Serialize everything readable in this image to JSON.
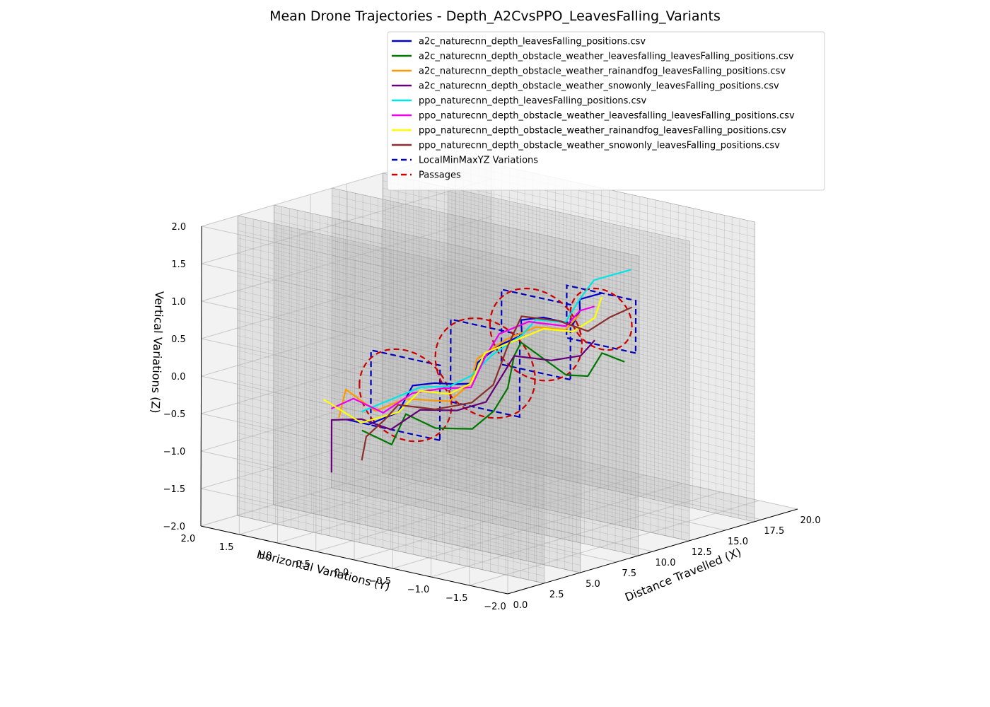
{
  "chart_data": {
    "type": "line",
    "title": "Mean Drone Trajectories - Depth_A2CvsPPO_LeavesFalling_Variants",
    "xlabel": "Distance Travelled (X)",
    "ylabel": "Horizontal Variations (Y)",
    "zlabel": "Vertical Variations (Z)",
    "xlim": [
      0,
      20
    ],
    "ylim": [
      -2,
      2
    ],
    "zlim": [
      -2,
      2
    ],
    "xticks": [
      "0.0",
      "2.5",
      "5.0",
      "7.5",
      "10.0",
      "12.5",
      "15.0",
      "17.5",
      "20.0"
    ],
    "yticks": [
      "2.0",
      "1.5",
      "1.0",
      "0.5",
      "0.0",
      "−0.5",
      "−1.0",
      "−1.5",
      "−2.0"
    ],
    "zticks": [
      "2.0",
      "1.5",
      "1.0",
      "0.5",
      "0.0",
      "−0.5",
      "−1.0",
      "−1.5",
      "−2.0"
    ],
    "grid": true,
    "legend_position": "top-right",
    "walls_x": [
      2.5,
      5.0,
      9.0,
      12.5,
      17.0
    ],
    "series": [
      {
        "name": "a2c_naturecnn_depth_leavesFalling_positions.csv",
        "color": "#0000cc",
        "points": [
          [
            0.5,
            0.2,
            -0.2
          ],
          [
            1.5,
            0.1,
            -0.3
          ],
          [
            3,
            0.0,
            -0.2
          ],
          [
            4,
            0.0,
            0.1
          ],
          [
            5,
            -0.1,
            0.1
          ],
          [
            6.5,
            -0.1,
            0.0
          ],
          [
            8,
            0.0,
            -0.1
          ],
          [
            9,
            0.1,
            0.1
          ],
          [
            10,
            0.0,
            0.3
          ],
          [
            11,
            -0.1,
            0.4
          ],
          [
            12,
            0.1,
            0.5
          ],
          [
            13,
            0.0,
            0.5
          ],
          [
            14,
            -0.2,
            0.4
          ],
          [
            15,
            -0.1,
            0.5
          ],
          [
            15.5,
            0.0,
            0.6
          ],
          [
            16,
            -0.2,
            0.7
          ]
        ]
      },
      {
        "name": "a2c_naturecnn_depth_obstacle_weather_leavesfalling_leavesFalling_positions.csv",
        "color": "#007700",
        "points": [
          [
            0.5,
            0.0,
            -0.3
          ],
          [
            1.5,
            -0.2,
            -0.5
          ],
          [
            3,
            -0.1,
            -0.2
          ],
          [
            4,
            -0.3,
            -0.4
          ],
          [
            6,
            -0.4,
            -0.5
          ],
          [
            8,
            -0.3,
            -0.4
          ],
          [
            9.5,
            -0.2,
            -0.2
          ],
          [
            11,
            0.0,
            0.1
          ],
          [
            12,
            0.1,
            0.2
          ],
          [
            13,
            -0.3,
            -0.2
          ],
          [
            14.5,
            -0.3,
            -0.3
          ],
          [
            16,
            -0.2,
            -0.1
          ],
          [
            16.5,
            -0.4,
            -0.2
          ]
        ]
      },
      {
        "name": "a2c_naturecnn_depth_obstacle_weather_rainandfog_leavesFalling_positions.csv",
        "color": "#ff9900",
        "points": [
          [
            0.5,
            0.3,
            -0.2
          ],
          [
            1.5,
            0.4,
            0.1
          ],
          [
            2.5,
            0.2,
            -0.2
          ],
          [
            4,
            0.1,
            -0.1
          ],
          [
            6,
            -0.1,
            -0.2
          ],
          [
            8,
            0.0,
            -0.1
          ],
          [
            9.5,
            0.2,
            0.1
          ],
          [
            11,
            0.1,
            0.3
          ],
          [
            12.5,
            0.0,
            0.4
          ],
          [
            14,
            -0.1,
            0.3
          ],
          [
            15.5,
            0.0,
            0.4
          ]
        ]
      },
      {
        "name": "a2c_naturecnn_depth_obstacle_weather_snowonly_leavesFalling_positions.csv",
        "color": "#660077",
        "points": [
          [
            0.0,
            0.3,
            -0.9
          ],
          [
            0.0,
            0.3,
            -0.2
          ],
          [
            1,
            0.1,
            -0.2
          ],
          [
            2.5,
            0.0,
            -0.4
          ],
          [
            4,
            -0.1,
            -0.2
          ],
          [
            6,
            -0.2,
            -0.3
          ],
          [
            8,
            -0.2,
            -0.3
          ],
          [
            9.5,
            -0.1,
            -0.1
          ],
          [
            11,
            0.0,
            0.1
          ],
          [
            12.5,
            -0.2,
            0.0
          ],
          [
            14,
            -0.3,
            0.0
          ],
          [
            15.5,
            -0.2,
            0.1
          ]
        ]
      },
      {
        "name": "ppo_naturecnn_depth_leavesFalling_positions.csv",
        "color": "#00e6e6",
        "points": [
          [
            1,
            0.1,
            -0.1
          ],
          [
            2.5,
            0.0,
            0.0
          ],
          [
            4,
            -0.1,
            0.1
          ],
          [
            6,
            -0.1,
            0.0
          ],
          [
            8,
            0.0,
            0.0
          ],
          [
            9.5,
            0.0,
            0.2
          ],
          [
            11,
            -0.1,
            0.4
          ],
          [
            12.5,
            0.0,
            0.5
          ],
          [
            14,
            -0.1,
            0.4
          ],
          [
            15.5,
            0.0,
            0.6
          ],
          [
            16.5,
            0.0,
            0.8
          ],
          [
            18,
            -0.2,
            0.9
          ]
        ]
      },
      {
        "name": "ppo_naturecnn_depth_obstacle_weather_leavesfalling_leavesFalling_positions.csv",
        "color": "#ee00ee",
        "points": [
          [
            0.5,
            0.4,
            -0.1
          ],
          [
            1.5,
            0.3,
            0.0
          ],
          [
            2.5,
            0.1,
            -0.2
          ],
          [
            4,
            0.0,
            0.0
          ],
          [
            5.5,
            -0.1,
            0.0
          ],
          [
            7.5,
            -0.1,
            -0.1
          ],
          [
            9,
            0.0,
            0.2
          ],
          [
            10.5,
            0.1,
            0.4
          ],
          [
            12,
            0.0,
            0.5
          ],
          [
            13.5,
            -0.2,
            0.4
          ],
          [
            15,
            -0.1,
            0.5
          ],
          [
            16,
            -0.1,
            0.5
          ]
        ]
      },
      {
        "name": "ppo_naturecnn_depth_obstacle_weather_rainandfog_leavesFalling_positions.csv",
        "color": "#ffff00",
        "points": [
          [
            0.5,
            0.5,
            0.0
          ],
          [
            1.5,
            0.2,
            -0.3
          ],
          [
            3,
            0.0,
            -0.2
          ],
          [
            4.5,
            0.0,
            0.0
          ],
          [
            6,
            -0.1,
            -0.1
          ],
          [
            8,
            0.0,
            -0.1
          ],
          [
            9.5,
            0.1,
            0.2
          ],
          [
            11,
            0.0,
            0.3
          ],
          [
            12.5,
            -0.1,
            0.4
          ],
          [
            14,
            -0.2,
            0.3
          ],
          [
            15.5,
            -0.2,
            0.4
          ],
          [
            16.5,
            -0.1,
            0.6
          ]
        ]
      },
      {
        "name": "ppo_naturecnn_depth_obstacle_weather_snowonly_leavesFalling_positions.csv",
        "color": "#8b2e2e",
        "points": [
          [
            0.5,
            0.0,
            -0.7
          ],
          [
            0.8,
            0.0,
            -0.4
          ],
          [
            1.5,
            -0.1,
            -0.2
          ],
          [
            3,
            0.0,
            -0.1
          ],
          [
            4.5,
            -0.2,
            -0.2
          ],
          [
            6.5,
            -0.3,
            -0.2
          ],
          [
            8.5,
            -0.2,
            -0.1
          ],
          [
            10,
            -0.1,
            0.3
          ],
          [
            11.5,
            0.0,
            0.6
          ],
          [
            13,
            -0.2,
            0.5
          ],
          [
            14.5,
            -0.3,
            0.3
          ],
          [
            16,
            -0.3,
            0.4
          ],
          [
            17,
            -0.4,
            0.5
          ]
        ]
      }
    ],
    "local_min_max_yz": {
      "name": "LocalMinMaxYZ Variations",
      "color": "#0000bb",
      "style": "dashed",
      "boxes": [
        {
          "x": 3.5,
          "ymin": -0.45,
          "ymax": 0.45,
          "zmin": -0.5,
          "zmax": 0.5
        },
        {
          "x": 9.0,
          "ymin": -0.45,
          "ymax": 0.45,
          "zmin": -0.5,
          "zmax": 0.6
        },
        {
          "x": 12.5,
          "ymin": -0.45,
          "ymax": 0.45,
          "zmin": -0.2,
          "zmax": 0.8
        },
        {
          "x": 17.0,
          "ymin": -0.45,
          "ymax": 0.45,
          "zmin": -0.1,
          "zmax": 0.6
        }
      ]
    },
    "passages": {
      "name": "Passages",
      "color": "#cc0000",
      "style": "dashed",
      "circles": [
        {
          "x": 3.5,
          "y": 0.0,
          "z": 0.0,
          "r": 0.6
        },
        {
          "x": 9.0,
          "y": 0.0,
          "z": 0.05,
          "r": 0.65
        },
        {
          "x": 12.5,
          "y": 0.0,
          "z": 0.3,
          "r": 0.6
        },
        {
          "x": 17.0,
          "y": 0.0,
          "z": 0.25,
          "r": 0.4
        }
      ]
    }
  }
}
